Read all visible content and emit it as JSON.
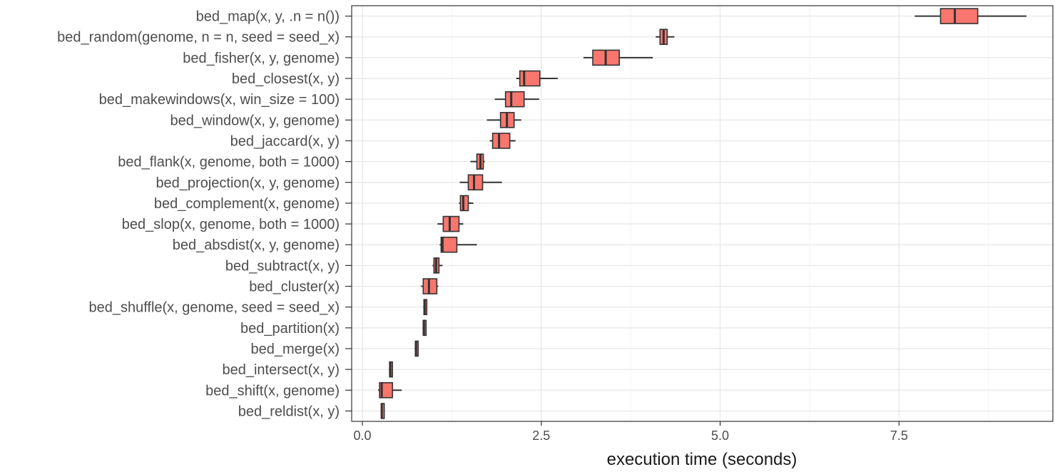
{
  "chart_data": {
    "type": "boxplot",
    "orientation": "horizontal",
    "xlabel": "execution time (seconds)",
    "ylabel": "",
    "xlim": [
      -0.15,
      9.65
    ],
    "xticks": [
      {
        "value": 0.0,
        "label": "0.0"
      },
      {
        "value": 2.5,
        "label": "2.5"
      },
      {
        "value": 5.0,
        "label": "5.0"
      },
      {
        "value": 7.5,
        "label": "7.5"
      }
    ],
    "grid": true,
    "legend": "none",
    "colors": {
      "box_fill": "#f8766d",
      "box_stroke": "#333333",
      "grid": "#ebebeb",
      "panel_border": "#333333"
    },
    "categories": [
      {
        "label": "bed_map(x, y, .n = n())",
        "whisker_low": 7.72,
        "q1": 8.08,
        "median": 8.28,
        "q3": 8.6,
        "whisker_high": 9.28
      },
      {
        "label": "bed_random(genome, n = n, seed = seed_x)",
        "whisker_low": 4.1,
        "q1": 4.16,
        "median": 4.21,
        "q3": 4.26,
        "whisker_high": 4.36
      },
      {
        "label": "bed_fisher(x, y, genome)",
        "whisker_low": 3.09,
        "q1": 3.22,
        "median": 3.4,
        "q3": 3.59,
        "whisker_high": 4.06
      },
      {
        "label": "bed_closest(x, y)",
        "whisker_low": 2.15,
        "q1": 2.2,
        "median": 2.26,
        "q3": 2.48,
        "whisker_high": 2.73
      },
      {
        "label": "bed_makewindows(x, win_size = 100)",
        "whisker_low": 1.85,
        "q1": 2.0,
        "median": 2.08,
        "q3": 2.26,
        "whisker_high": 2.47
      },
      {
        "label": "bed_window(x, y, genome)",
        "whisker_low": 1.74,
        "q1": 1.93,
        "median": 2.02,
        "q3": 2.12,
        "whisker_high": 2.22
      },
      {
        "label": "bed_jaccard(x, y)",
        "whisker_low": 1.78,
        "q1": 1.82,
        "median": 1.91,
        "q3": 2.06,
        "whisker_high": 2.14
      },
      {
        "label": "bed_flank(x, genome, both = 1000)",
        "whisker_low": 1.51,
        "q1": 1.6,
        "median": 1.65,
        "q3": 1.69,
        "whisker_high": 1.71
      },
      {
        "label": "bed_projection(x, y, genome)",
        "whisker_low": 1.36,
        "q1": 1.48,
        "median": 1.56,
        "q3": 1.68,
        "whisker_high": 1.95
      },
      {
        "label": "bed_complement(x, genome)",
        "whisker_low": 1.35,
        "q1": 1.37,
        "median": 1.41,
        "q3": 1.48,
        "whisker_high": 1.55
      },
      {
        "label": "bed_slop(x, genome, both = 1000)",
        "whisker_low": 1.05,
        "q1": 1.13,
        "median": 1.22,
        "q3": 1.35,
        "whisker_high": 1.41
      },
      {
        "label": "bed_absdist(x, y, genome)",
        "whisker_low": 1.08,
        "q1": 1.1,
        "median": 1.12,
        "q3": 1.32,
        "whisker_high": 1.6
      },
      {
        "label": "bed_subtract(x, y)",
        "whisker_low": 0.98,
        "q1": 1.0,
        "median": 1.03,
        "q3": 1.07,
        "whisker_high": 1.12
      },
      {
        "label": "bed_cluster(x)",
        "whisker_low": 0.82,
        "q1": 0.85,
        "median": 0.93,
        "q3": 1.04,
        "whisker_high": 1.06
      },
      {
        "label": "bed_shuffle(x, genome, seed = seed_x)",
        "whisker_low": 0.85,
        "q1": 0.86,
        "median": 0.87,
        "q3": 0.89,
        "whisker_high": 0.9
      },
      {
        "label": "bed_partition(x)",
        "whisker_low": 0.84,
        "q1": 0.85,
        "median": 0.86,
        "q3": 0.87,
        "whisker_high": 0.88
      },
      {
        "label": "bed_merge(x)",
        "whisker_low": 0.73,
        "q1": 0.74,
        "median": 0.75,
        "q3": 0.76,
        "whisker_high": 0.77
      },
      {
        "label": "bed_intersect(x, y)",
        "whisker_low": 0.37,
        "q1": 0.38,
        "median": 0.39,
        "q3": 0.4,
        "whisker_high": 0.41
      },
      {
        "label": "bed_shift(x, genome)",
        "whisker_low": 0.22,
        "q1": 0.24,
        "median": 0.27,
        "q3": 0.42,
        "whisker_high": 0.55
      },
      {
        "label": "bed_reldist(x, y)",
        "whisker_low": 0.26,
        "q1": 0.265,
        "median": 0.27,
        "q3": 0.28,
        "whisker_high": 0.29
      }
    ]
  }
}
